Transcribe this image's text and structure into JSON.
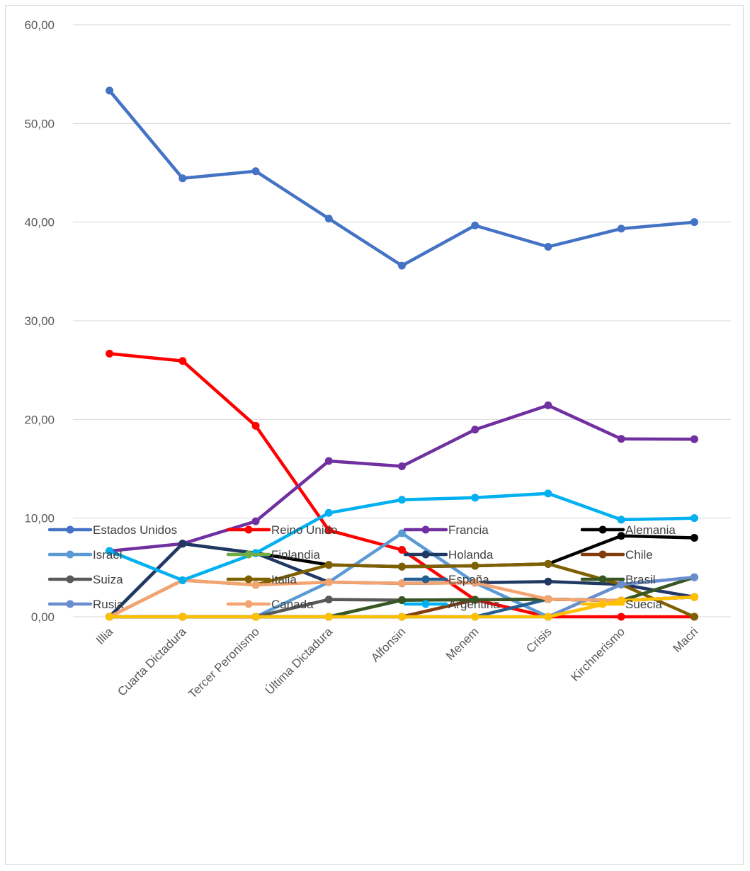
{
  "chart_data": {
    "type": "line",
    "title": "",
    "xlabel": "",
    "ylabel": "",
    "ylim": [
      0,
      60
    ],
    "yticks": [
      "0,00",
      "10,00",
      "20,00",
      "30,00",
      "40,00",
      "50,00",
      "60,00"
    ],
    "grid": "horizontal",
    "legend_position": "bottom",
    "categories": [
      "Illia",
      "Cuarta Dictadura",
      "Tercer Peronismo",
      "Última Dictadura",
      "Alfonsin",
      "Menem",
      "Crisis",
      "Kirchnerismo",
      "Macri"
    ],
    "series": [
      {
        "name": "Estados Unidos",
        "color": "#4472C4",
        "values": [
          53.33,
          44.44,
          45.16,
          40.35,
          35.59,
          39.66,
          37.5,
          39.34,
          40.0
        ]
      },
      {
        "name": "Reino Unido",
        "color": "#FF0000",
        "values": [
          26.67,
          25.93,
          19.35,
          8.77,
          6.78,
          1.72,
          0,
          0,
          0
        ]
      },
      {
        "name": "Francia",
        "color": "#7030A0",
        "values": [
          6.67,
          7.41,
          9.68,
          15.79,
          15.25,
          18.97,
          21.43,
          18.03,
          18.0
        ]
      },
      {
        "name": "Alemania",
        "color": "#000000",
        "values": [
          0,
          7.41,
          6.45,
          5.26,
          5.08,
          5.17,
          5.36,
          8.2,
          8.0
        ]
      },
      {
        "name": "Israel",
        "color": "#5B9BD5",
        "values": [
          0,
          0,
          0,
          3.51,
          8.47,
          3.45,
          0,
          3.28,
          4.0
        ]
      },
      {
        "name": "Finlandia",
        "color": "#70AD47",
        "values": [
          0,
          0,
          0,
          0,
          1.69,
          1.72,
          1.79,
          1.64,
          2.0
        ]
      },
      {
        "name": "Holanda",
        "color": "#203864",
        "values": [
          0,
          7.41,
          6.45,
          3.51,
          3.39,
          3.45,
          3.57,
          3.28,
          2.0
        ]
      },
      {
        "name": "Chile",
        "color": "#843C0C",
        "values": [
          0,
          0,
          0,
          0,
          0,
          1.72,
          1.79,
          1.64,
          2.0
        ]
      },
      {
        "name": "Suiza",
        "color": "#595959",
        "values": [
          0,
          0,
          0,
          1.75,
          1.69,
          1.72,
          1.79,
          1.64,
          2.0
        ]
      },
      {
        "name": "Italia",
        "color": "#7F6000",
        "values": [
          0,
          3.7,
          3.23,
          5.26,
          5.08,
          5.17,
          5.36,
          3.28,
          0
        ]
      },
      {
        "name": "España",
        "color": "#255E91",
        "values": [
          0,
          0,
          0,
          0,
          0,
          0,
          1.79,
          1.64,
          2.0
        ]
      },
      {
        "name": "Brasil",
        "color": "#375623",
        "values": [
          0,
          0,
          0,
          0,
          1.69,
          1.72,
          1.79,
          1.64,
          4.0
        ]
      },
      {
        "name": "Rusia",
        "color": "#698ED0",
        "values": [
          0,
          0,
          0,
          0,
          0,
          0,
          0,
          3.28,
          4.0
        ]
      },
      {
        "name": "Canada",
        "color": "#F4A470",
        "values": [
          0,
          3.7,
          3.23,
          3.51,
          3.39,
          3.45,
          1.79,
          1.64,
          2.0
        ]
      },
      {
        "name": "Argentina",
        "color": "#00B0F0",
        "values": [
          6.67,
          3.7,
          6.45,
          10.53,
          11.86,
          12.07,
          12.5,
          9.84,
          10.0
        ]
      },
      {
        "name": "Suecia",
        "color": "#FFC000",
        "values": [
          0,
          0,
          0,
          0,
          0,
          0,
          0,
          1.64,
          2.0
        ]
      }
    ]
  }
}
